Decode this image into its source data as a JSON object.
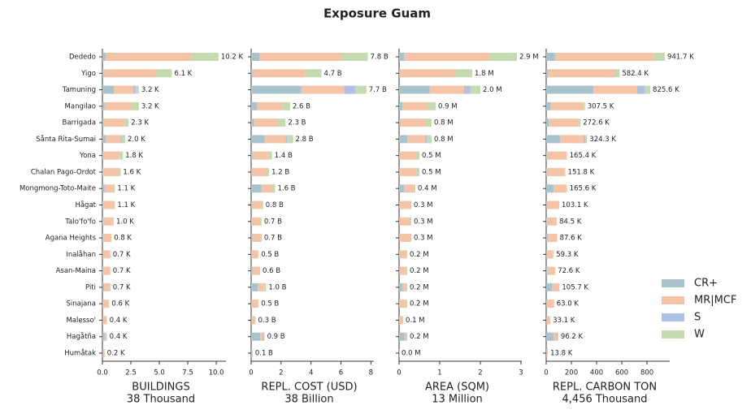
{
  "title": "Exposure Guam",
  "chart_data": [
    {
      "type": "bar",
      "orientation": "horizontal",
      "xlabel": "BUILDINGS",
      "xsublabel": "38 Thousand",
      "categories": [
        "Dededo",
        "Yigo",
        "Tamuning",
        "Mangilao",
        "Barrigada",
        "Sånta Rita-Sumai",
        "Yona",
        "Chalan Pago-Ordot",
        "Mongmong-Toto-Maite",
        "Hågat",
        "Talo'fo'fo",
        "Agana Heights",
        "Inalåhan",
        "Asan-Maina",
        "Piti",
        "Sinajana",
        "Malesso'",
        "Hagåtña",
        "Humåtak"
      ],
      "xlim": [
        0,
        10.85
      ],
      "xticks": [
        {
          "value": 0,
          "label": "0.0"
        },
        {
          "value": 2.5,
          "label": "2.5"
        },
        {
          "value": 5,
          "label": "5.0"
        },
        {
          "value": 7.5,
          "label": "7.5"
        },
        {
          "value": 10,
          "label": "10.0"
        }
      ],
      "series": [
        {
          "name": "CR+",
          "color": "#a9c3cc",
          "values": [
            0.3,
            0.1,
            1.0,
            0.2,
            0.1,
            0.3,
            0.05,
            0.05,
            0.2,
            0.05,
            0.05,
            0.05,
            0.02,
            0.05,
            0.15,
            0.03,
            0.02,
            0.2,
            0.01
          ]
        },
        {
          "name": "MR|MCF",
          "color": "#f5c3a6",
          "values": [
            7.5,
            4.6,
            1.7,
            2.3,
            1.8,
            1.3,
            1.4,
            1.3,
            0.8,
            0.95,
            0.85,
            0.7,
            0.63,
            0.6,
            0.45,
            0.52,
            0.35,
            0.15,
            0.17
          ]
        },
        {
          "name": "S",
          "color": "#aec0e4",
          "values": [
            0,
            0,
            0.2,
            0,
            0,
            0.1,
            0,
            0,
            0,
            0,
            0,
            0,
            0,
            0,
            0,
            0,
            0,
            0.02,
            0
          ]
        },
        {
          "name": "W",
          "color": "#c6dab1",
          "values": [
            2.4,
            1.4,
            0.3,
            0.7,
            0.4,
            0.3,
            0.35,
            0.25,
            0.1,
            0.1,
            0.1,
            0.05,
            0.05,
            0.05,
            0.1,
            0.05,
            0.03,
            0.03,
            0.02
          ]
        }
      ],
      "totals": [
        10.2,
        6.1,
        3.2,
        3.2,
        2.3,
        2.0,
        1.8,
        1.6,
        1.1,
        1.1,
        1.0,
        0.8,
        0.7,
        0.7,
        0.7,
        0.6,
        0.4,
        0.4,
        0.2
      ],
      "total_labels": [
        "10.2 K",
        "6.1 K",
        "3.2 K",
        "3.2 K",
        "2.3 K",
        "2.0 K",
        "1.8 K",
        "1.6 K",
        "1.1 K",
        "1.1 K",
        "1.0 K",
        "0.8 K",
        "0.7 K",
        "0.7 K",
        "0.7 K",
        "0.6 K",
        "0.4 K",
        "0.4 K",
        "0.2 K"
      ]
    },
    {
      "type": "bar",
      "orientation": "horizontal",
      "xlabel": "REPL. COST (USD)",
      "xsublabel": "38 Billion",
      "xlim": [
        0,
        8.2
      ],
      "xticks": [
        0,
        2,
        4,
        6,
        8
      ],
      "series": [
        {
          "name": "CR+",
          "color": "#a9c3cc",
          "values": [
            0.55,
            0.1,
            3.35,
            0.4,
            0.2,
            0.9,
            0.1,
            0.05,
            0.7,
            0.05,
            0.05,
            0.1,
            0.02,
            0.1,
            0.45,
            0.05,
            0.02,
            0.6,
            0.01
          ]
        },
        {
          "name": "MR|MCF",
          "color": "#f5c3a6",
          "values": [
            5.45,
            3.5,
            2.85,
            1.7,
            1.6,
            1.4,
            1.0,
            0.95,
            0.7,
            0.65,
            0.55,
            0.55,
            0.43,
            0.45,
            0.4,
            0.4,
            0.25,
            0.15,
            0.08
          ]
        },
        {
          "name": "S",
          "color": "#aec0e4",
          "values": [
            0,
            0,
            0.75,
            0,
            0,
            0.1,
            0,
            0,
            0,
            0,
            0,
            0,
            0,
            0,
            0,
            0,
            0,
            0.1,
            0
          ]
        },
        {
          "name": "W",
          "color": "#c6dab1",
          "values": [
            1.8,
            1.1,
            0.75,
            0.5,
            0.5,
            0.4,
            0.3,
            0.2,
            0.2,
            0.1,
            0.1,
            0.05,
            0.05,
            0.05,
            0.15,
            0.05,
            0.03,
            0.05,
            0.01
          ]
        }
      ],
      "totals": [
        7.8,
        4.7,
        7.7,
        2.6,
        2.3,
        2.8,
        1.4,
        1.2,
        1.6,
        0.8,
        0.7,
        0.7,
        0.5,
        0.6,
        1.0,
        0.5,
        0.3,
        0.9,
        0.1
      ],
      "total_labels": [
        "7.8 B",
        "4.7 B",
        "7.7 B",
        "2.6 B",
        "2.3 B",
        "2.8 B",
        "1.4 B",
        "1.2 B",
        "1.6 B",
        "0.8 B",
        "0.7 B",
        "0.7 B",
        "0.5 B",
        "0.6 B",
        "1.0 B",
        "0.5 B",
        "0.3 B",
        "0.9 B",
        "0.1 B"
      ]
    },
    {
      "type": "bar",
      "orientation": "horizontal",
      "xlabel": "AREA (SQM)",
      "xsublabel": "13 Million",
      "xlim": [
        0,
        3.02
      ],
      "xticks": [
        0,
        1,
        2,
        3
      ],
      "series": [
        {
          "name": "CR+",
          "color": "#a9c3cc",
          "values": [
            0.12,
            0.02,
            0.75,
            0.08,
            0.03,
            0.2,
            0.02,
            0.02,
            0.12,
            0.01,
            0.02,
            0.02,
            0.01,
            0.02,
            0.08,
            0.01,
            0.01,
            0.13,
            0.002
          ]
        },
        {
          "name": "MR|MCF",
          "color": "#f5c3a6",
          "values": [
            2.1,
            1.35,
            0.85,
            0.62,
            0.6,
            0.45,
            0.38,
            0.4,
            0.25,
            0.26,
            0.23,
            0.25,
            0.17,
            0.16,
            0.09,
            0.17,
            0.08,
            0.05,
            0.015
          ]
        },
        {
          "name": "S",
          "color": "#aec0e4",
          "values": [
            0,
            0,
            0.15,
            0,
            0,
            0.03,
            0,
            0,
            0,
            0,
            0,
            0,
            0,
            0,
            0,
            0,
            0,
            0.01,
            0
          ]
        },
        {
          "name": "W",
          "color": "#c6dab1",
          "values": [
            0.68,
            0.43,
            0.25,
            0.2,
            0.17,
            0.12,
            0.1,
            0.08,
            0.03,
            0.03,
            0.05,
            0.03,
            0.02,
            0.02,
            0.03,
            0.02,
            0.01,
            0.01,
            0.003
          ]
        }
      ],
      "totals": [
        2.9,
        1.8,
        2.0,
        0.9,
        0.8,
        0.8,
        0.5,
        0.5,
        0.4,
        0.3,
        0.3,
        0.3,
        0.2,
        0.2,
        0.2,
        0.2,
        0.1,
        0.2,
        0.0
      ],
      "total_labels": [
        "2.9 M",
        "1.8 M",
        "2.0 M",
        "0.9 M",
        "0.8 M",
        "0.8 M",
        "0.5 M",
        "0.5 M",
        "0.4 M",
        "0.3 M",
        "0.3 M",
        "0.3 M",
        "0.2 M",
        "0.2 M",
        "0.2 M",
        "0.2 M",
        "0.1 M",
        "0.2 M",
        "0.0 M"
      ]
    },
    {
      "type": "bar",
      "orientation": "horizontal",
      "xlabel": "REPL. CARBON TON",
      "xsublabel": "4,456 Thousand",
      "xlim": [
        0,
        980
      ],
      "xticks": [
        0,
        200,
        400,
        600,
        800
      ],
      "series": [
        {
          "name": "CR+",
          "color": "#a9c3cc",
          "values": [
            70,
            15,
            375,
            35,
            20,
            110,
            5,
            5,
            60,
            3,
            5,
            10,
            2,
            8,
            45,
            3,
            1,
            55,
            0.5
          ]
        },
        {
          "name": "MR|MCF",
          "color": "#f5c3a6",
          "values": [
            782,
            520,
            347,
            260,
            240,
            190,
            155,
            142,
            100,
            97,
            76,
            75,
            55,
            62,
            55,
            58,
            31,
            30,
            12.8
          ]
        },
        {
          "name": "S",
          "color": "#aec0e4",
          "values": [
            0,
            0,
            63,
            0,
            0,
            10,
            0,
            0,
            0,
            0,
            0,
            0,
            0,
            0,
            0,
            0,
            0,
            8,
            0
          ]
        },
        {
          "name": "W",
          "color": "#c6dab1",
          "values": [
            89.7,
            47.4,
            40.6,
            12.5,
            12.6,
            14.3,
            5.4,
            4.8,
            5.6,
            3.1,
            3.5,
            2.6,
            2.3,
            2.6,
            5.7,
            2.0,
            1.1,
            3.2,
            0.5
          ]
        }
      ],
      "totals": [
        941.7,
        582.4,
        825.6,
        307.5,
        272.6,
        324.3,
        165.4,
        151.8,
        165.6,
        103.1,
        84.5,
        87.6,
        59.3,
        72.6,
        105.7,
        63.0,
        33.1,
        96.2,
        13.8
      ],
      "total_labels": [
        "941.7 K",
        "582.4 K",
        "825.6 K",
        "307.5 K",
        "272.6 K",
        "324.3 K",
        "165.4 K",
        "151.8 K",
        "165.6 K",
        "103.1 K",
        "84.5 K",
        "87.6 K",
        "59.3 K",
        "72.6 K",
        "105.7 K",
        "63.0 K",
        "33.1 K",
        "96.2 K",
        "13.8 K"
      ]
    }
  ]
}
